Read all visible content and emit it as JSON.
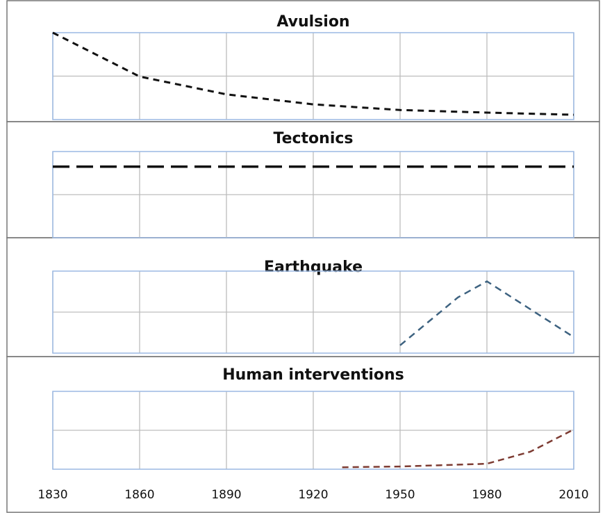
{
  "chart_data": [
    {
      "type": "line",
      "title": "Avulsion",
      "xlim": [
        1830,
        2010
      ],
      "xticks": [
        1830,
        1860,
        1890,
        1920,
        1950,
        1980,
        2010
      ],
      "ylim": [
        0,
        2
      ],
      "grid": true,
      "x": [
        1830,
        1860,
        1890,
        1920,
        1950,
        1980,
        2010
      ],
      "series": [
        {
          "color": "#111111",
          "values": [
            2.0,
            0.99,
            0.58,
            0.35,
            0.22,
            0.16,
            0.11
          ]
        }
      ]
    },
    {
      "type": "line",
      "title": "Tectonics",
      "xlim": [
        1830,
        2010
      ],
      "xticks": [
        1830,
        1860,
        1890,
        1920,
        1950,
        1980,
        2010
      ],
      "ylim": [
        0,
        2
      ],
      "grid": true,
      "x": [
        1830,
        2010
      ],
      "series": [
        {
          "color": "#111111",
          "values": [
            1.65,
            1.65
          ]
        }
      ]
    },
    {
      "type": "line",
      "title": "Earthquake",
      "xlim": [
        1830,
        2010
      ],
      "xticks": [
        1830,
        1860,
        1890,
        1920,
        1950,
        1980,
        2010
      ],
      "ylim": [
        0,
        2
      ],
      "grid": true,
      "x": [
        1950,
        1970,
        1980,
        2010
      ],
      "series": [
        {
          "color": "#3d6280",
          "values": [
            0.19,
            1.36,
            1.75,
            0.39
          ]
        }
      ]
    },
    {
      "type": "line",
      "title": "Human interventions",
      "xlim": [
        1830,
        2010
      ],
      "xticks": [
        1830,
        1860,
        1890,
        1920,
        1950,
        1980,
        2010
      ],
      "ylim": [
        0,
        2
      ],
      "grid": true,
      "xtick_labels": true,
      "x": [
        1930,
        1950,
        1980,
        1995,
        2010
      ],
      "series": [
        {
          "color": "#7d3b32",
          "values": [
            0.05,
            0.07,
            0.14,
            0.45,
            1.02
          ]
        }
      ]
    }
  ]
}
